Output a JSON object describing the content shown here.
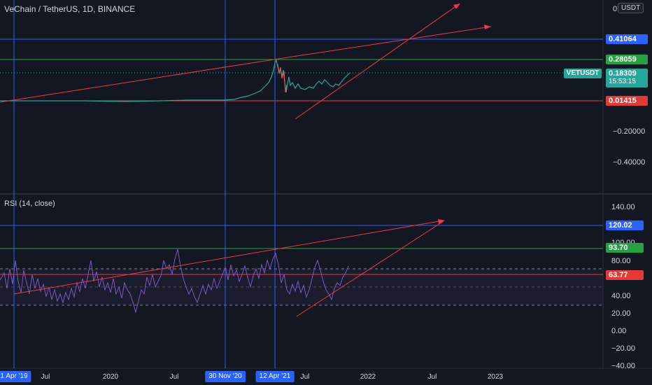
{
  "header": {
    "title": "VeChain / TetherUS, 1D, BINANCE",
    "currency": "USDT"
  },
  "price_axis": {
    "ticks": [
      "0",
      "−0.20000",
      "−0.40000"
    ],
    "levels": [
      {
        "value": "0.41064",
        "color": "#2962ff"
      },
      {
        "value": "0.28059",
        "color": "#26a041"
      },
      {
        "value": "0.01415",
        "color": "#e53935"
      }
    ],
    "current": {
      "symbol": "VETUSDT",
      "price": "0.18309",
      "countdown": "15:53:15",
      "color": "#26a69a"
    }
  },
  "rsi": {
    "title": "RSI (14, close)",
    "ticks": [
      "140.00",
      "100.00",
      "80.00",
      "40.00",
      "20.00",
      "0.00",
      "−20.00",
      "−40.00"
    ],
    "levels": [
      {
        "value": "120.02",
        "color": "#2962ff"
      },
      {
        "value": "93.70",
        "color": "#26a041"
      },
      {
        "value": "63.77",
        "color": "#e53935"
      }
    ]
  },
  "time_axis": {
    "ticks": [
      "Jul",
      "2020",
      "Jul",
      "Jul",
      "2022",
      "Jul",
      "2023"
    ],
    "highlighted": [
      "1 Apr '19",
      "30 Nov '20",
      "12 Apr '21"
    ]
  },
  "colors": {
    "background": "#131722",
    "rsi_line": "#7e57c2",
    "trendline": "#f23645",
    "vertical_line": "#2962ff",
    "price_line": "#26a69a"
  }
}
